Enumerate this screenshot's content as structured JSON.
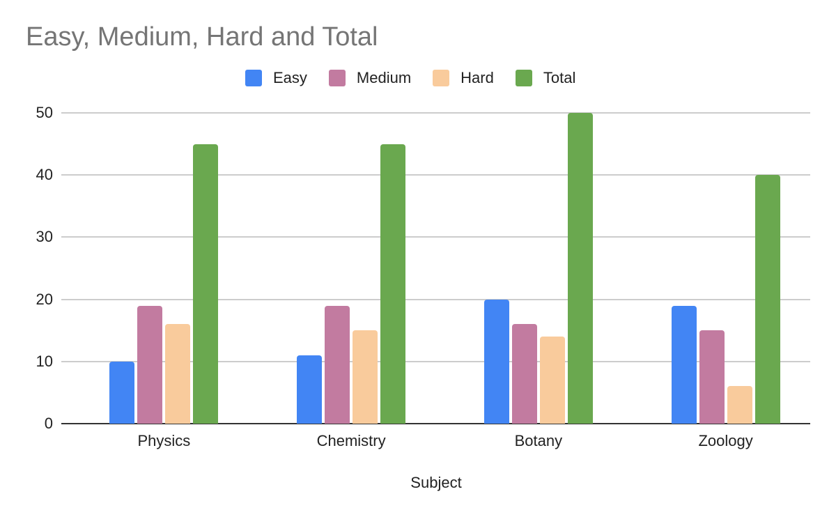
{
  "chart_data": {
    "type": "bar",
    "title": "Easy, Medium, Hard and Total",
    "xlabel": "Subject",
    "ylabel": "",
    "categories": [
      "Physics",
      "Chemistry",
      "Botany",
      "Zoology"
    ],
    "series": [
      {
        "name": "Easy",
        "color": "#4285f4",
        "values": [
          10,
          11,
          20,
          19
        ]
      },
      {
        "name": "Medium",
        "color": "#c27ba0",
        "values": [
          19,
          19,
          16,
          15
        ]
      },
      {
        "name": "Hard",
        "color": "#f9cb9c",
        "values": [
          16,
          15,
          14,
          6
        ]
      },
      {
        "name": "Total",
        "color": "#6aa84f",
        "values": [
          45,
          45,
          50,
          40
        ]
      }
    ],
    "ylim": [
      0,
      50
    ],
    "yticks": [
      "0",
      "10",
      "20",
      "30",
      "40",
      "50"
    ],
    "grid": true,
    "legend_position": "top"
  }
}
